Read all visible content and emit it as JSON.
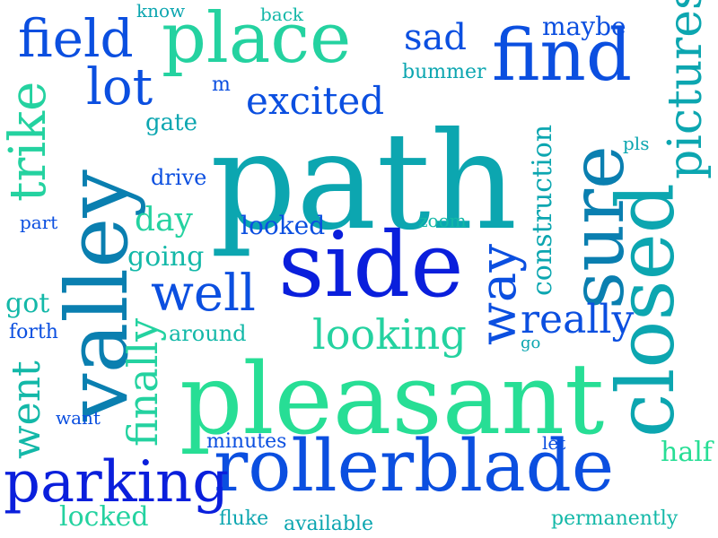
{
  "colors": {
    "blue": "#0a1fdc",
    "royal": "#0b4fe0",
    "teal_blue": "#0a7fb0",
    "teal": "#0ca6b0",
    "aqua": "#13b8a8",
    "mint": "#24d2a0",
    "green": "#27de95"
  },
  "words": [
    {
      "text": "path",
      "color": "teal",
      "orientation": "horizontal"
    },
    {
      "text": "pleasant",
      "color": "green",
      "orientation": "horizontal"
    },
    {
      "text": "rollerblade",
      "color": "royal",
      "orientation": "horizontal"
    },
    {
      "text": "side",
      "color": "blue",
      "orientation": "horizontal"
    },
    {
      "text": "valley",
      "color": "teal_blue",
      "orientation": "vertical"
    },
    {
      "text": "place",
      "color": "mint",
      "orientation": "horizontal"
    },
    {
      "text": "find",
      "color": "royal",
      "orientation": "horizontal"
    },
    {
      "text": "closed",
      "color": "teal",
      "orientation": "vertical"
    },
    {
      "text": "sure",
      "color": "teal_blue",
      "orientation": "vertical"
    },
    {
      "text": "parking",
      "color": "blue",
      "orientation": "horizontal"
    },
    {
      "text": "field",
      "color": "royal",
      "orientation": "horizontal"
    },
    {
      "text": "pictures",
      "color": "teal",
      "orientation": "vertical"
    },
    {
      "text": "trike",
      "color": "mint",
      "orientation": "vertical"
    },
    {
      "text": "lot",
      "color": "royal",
      "orientation": "horizontal"
    },
    {
      "text": "way",
      "color": "royal",
      "orientation": "vertical"
    },
    {
      "text": "well",
      "color": "royal",
      "orientation": "horizontal"
    },
    {
      "text": "looking",
      "color": "mint",
      "orientation": "horizontal"
    },
    {
      "text": "really",
      "color": "royal",
      "orientation": "horizontal"
    },
    {
      "text": "excited",
      "color": "royal",
      "orientation": "horizontal"
    },
    {
      "text": "finally",
      "color": "mint",
      "orientation": "vertical"
    },
    {
      "text": "went",
      "color": "aqua",
      "orientation": "vertical"
    },
    {
      "text": "sad",
      "color": "royal",
      "orientation": "horizontal"
    },
    {
      "text": "construction",
      "color": "teal",
      "orientation": "vertical"
    },
    {
      "text": "day",
      "color": "mint",
      "orientation": "horizontal"
    },
    {
      "text": "locked",
      "color": "mint",
      "orientation": "horizontal"
    },
    {
      "text": "half",
      "color": "green",
      "orientation": "horizontal"
    },
    {
      "text": "got",
      "color": "aqua",
      "orientation": "horizontal"
    },
    {
      "text": "going",
      "color": "aqua",
      "orientation": "horizontal"
    },
    {
      "text": "maybe",
      "color": "royal",
      "orientation": "horizontal"
    },
    {
      "text": "looked",
      "color": "royal",
      "orientation": "horizontal"
    },
    {
      "text": "gate",
      "color": "teal",
      "orientation": "horizontal"
    },
    {
      "text": "drive",
      "color": "royal",
      "orientation": "horizontal"
    },
    {
      "text": "around",
      "color": "aqua",
      "orientation": "horizontal"
    },
    {
      "text": "forth",
      "color": "royal",
      "orientation": "horizontal"
    },
    {
      "text": "minutes",
      "color": "royal",
      "orientation": "horizontal"
    },
    {
      "text": "permanently",
      "color": "aqua",
      "orientation": "horizontal"
    },
    {
      "text": "available",
      "color": "teal",
      "orientation": "horizontal"
    },
    {
      "text": "fluke",
      "color": "teal",
      "orientation": "horizontal"
    },
    {
      "text": "bummer",
      "color": "teal",
      "orientation": "horizontal"
    },
    {
      "text": "want",
      "color": "royal",
      "orientation": "horizontal"
    },
    {
      "text": "part",
      "color": "royal",
      "orientation": "horizontal"
    },
    {
      "text": "know",
      "color": "teal",
      "orientation": "horizontal"
    },
    {
      "text": "back",
      "color": "aqua",
      "orientation": "horizontal"
    },
    {
      "text": "pls",
      "color": "teal",
      "orientation": "horizontal"
    },
    {
      "text": "zoom",
      "color": "aqua",
      "orientation": "horizontal"
    },
    {
      "text": "let",
      "color": "royal",
      "orientation": "horizontal"
    },
    {
      "text": "go",
      "color": "teal",
      "orientation": "horizontal"
    },
    {
      "text": "m",
      "color": "royal",
      "orientation": "horizontal"
    }
  ]
}
